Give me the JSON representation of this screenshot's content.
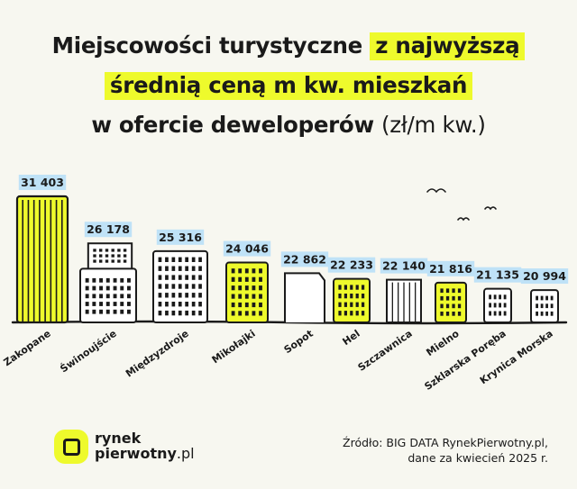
{
  "title": {
    "line1_plain": "Miejscowości turystyczne",
    "line1_highlight": "z najwyższą",
    "line2_highlight": "średnią ceną m kw. mieszkań",
    "line3_plain": "w ofercie deweloperów",
    "line3_unit": "(zł/m kw.)"
  },
  "colors": {
    "accent": "#eefa2c",
    "ink": "#1a1a1a",
    "label_bg": "#bfe2f7",
    "background": "#f7f7f0"
  },
  "chart_data": {
    "type": "bar",
    "categories": [
      "Zakopane",
      "Świnoujście",
      "Międzyzdroje",
      "Mikołajki",
      "Sopot",
      "Hel",
      "Szczawnica",
      "Mielno",
      "Szklarska Poręba",
      "Krynica Morska"
    ],
    "values": [
      31403,
      26178,
      25316,
      24046,
      22862,
      22233,
      22140,
      21816,
      21135,
      20994
    ],
    "value_labels": [
      "31 403",
      "26 178",
      "25 316",
      "24 046",
      "22 862",
      "22 233",
      "22 140",
      "21 816",
      "21 135",
      "20 994"
    ],
    "unit": "zł/m kw.",
    "highlighted": [
      true,
      false,
      false,
      true,
      false,
      true,
      false,
      true,
      false,
      false
    ]
  },
  "source": {
    "line1": "Źródło: BIG DATA RynekPierwotny.pl,",
    "line2": "dane za kwiecień 2025 r."
  },
  "logo": {
    "word1": "rynek",
    "word2": "pierwotny",
    "suffix": ".pl"
  }
}
